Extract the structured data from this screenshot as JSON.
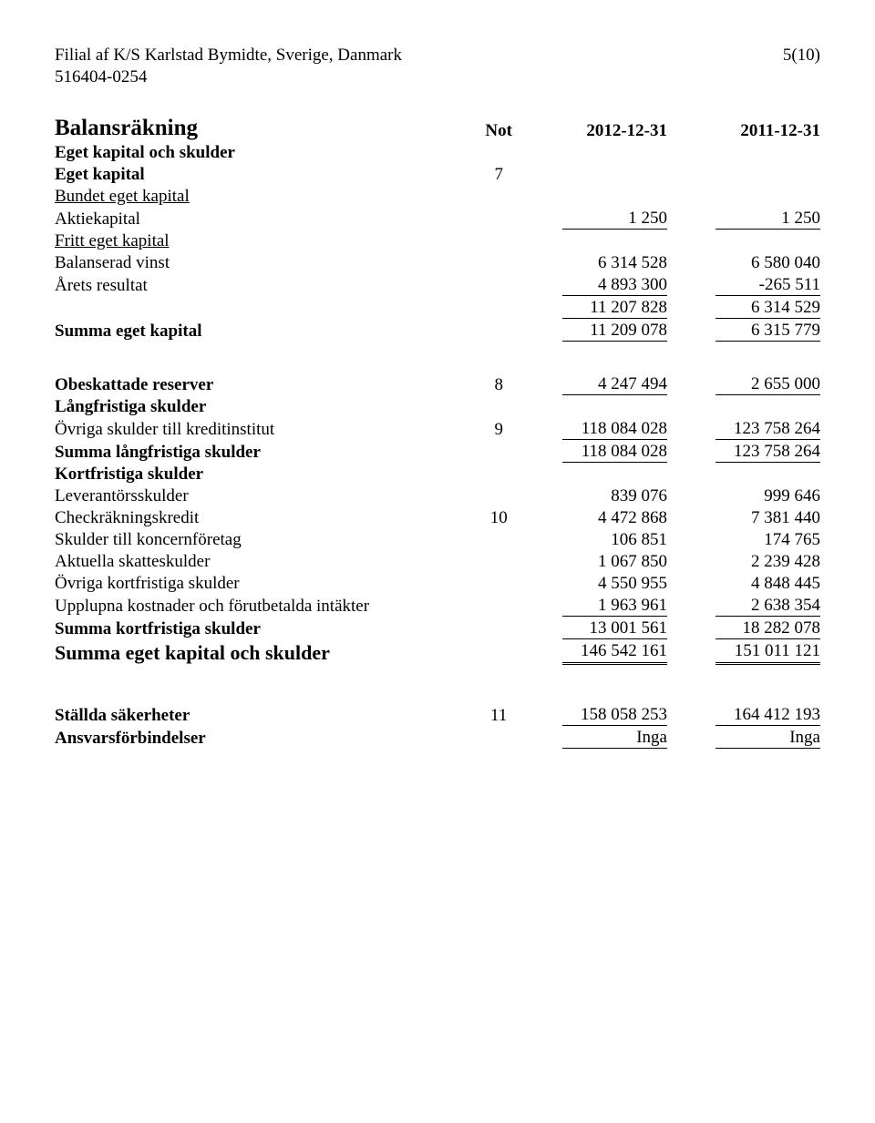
{
  "header": {
    "company": "Filial af K/S Karlstad Bymidte, Sverige, Danmark",
    "orgnr": "516404-0254",
    "page": "5(10)"
  },
  "cols": {
    "note": "Not",
    "y1": "2012-12-31",
    "y2": "2011-12-31"
  },
  "balans": {
    "title": "Balansräkning",
    "eget_title": "Eget kapital och skulder",
    "eget_sub": "Eget kapital",
    "eget_note": "7",
    "bundet_h": "Bundet eget kapital",
    "aktiekap": {
      "l": "Aktiekapital",
      "v1": "1 250",
      "v2": "1 250"
    },
    "fritt_h": "Fritt eget kapital",
    "balvinst": {
      "l": "Balanserad vinst",
      "v1": "6 314 528",
      "v2": "6 580 040"
    },
    "aretsres": {
      "l": "Årets resultat",
      "v1": "4 893 300",
      "v2": "-265 511"
    },
    "fritt_sum": {
      "v1": "11 207 828",
      "v2": "6 314 529"
    },
    "summa_eget": {
      "l": "Summa eget kapital",
      "v1": "11 209 078",
      "v2": "6 315 779"
    },
    "obesk": {
      "l": "Obeskattade reserver",
      "n": "8",
      "v1": "4 247 494",
      "v2": "2 655 000"
    },
    "lang_h": "Långfristiga skulder",
    "ovriga_kr": {
      "l": "Övriga skulder till kreditinstitut",
      "n": "9",
      "v1": "118 084 028",
      "v2": "123 758 264"
    },
    "summa_lang": {
      "l": "Summa långfristiga skulder",
      "v1": "118 084 028",
      "v2": "123 758 264"
    },
    "kort_h": "Kortfristiga skulder",
    "lev": {
      "l": "Leverantörsskulder",
      "v1": "839 076",
      "v2": "999 646"
    },
    "check": {
      "l": "Checkräkningskredit",
      "n": "10",
      "v1": "4 472 868",
      "v2": "7 381 440"
    },
    "konc": {
      "l": "Skulder till koncernföretag",
      "v1": "106 851",
      "v2": "174 765"
    },
    "akt": {
      "l": "Aktuella skatteskulder",
      "v1": "1 067 850",
      "v2": "2 239 428"
    },
    "ovr_k": {
      "l": "Övriga kortfristiga skulder",
      "v1": "4 550 955",
      "v2": "4 848 445"
    },
    "uppl": {
      "l": "Upplupna kostnader och förutbetalda intäkter",
      "v1": "1 963 961",
      "v2": "2 638 354"
    },
    "summa_kort": {
      "l": "Summa kortfristiga skulder",
      "v1": "13 001 561",
      "v2": "18 282 078"
    },
    "summa_all": {
      "l": "Summa eget kapital och skulder",
      "v1": "146 542 161",
      "v2": "151 011 121"
    },
    "stallda": {
      "l": "Ställda säkerheter",
      "n": "11",
      "v1": "158 058 253",
      "v2": "164 412 193"
    },
    "ansvar": {
      "l": "Ansvarsförbindelser",
      "v1": "Inga",
      "v2": "Inga"
    }
  }
}
